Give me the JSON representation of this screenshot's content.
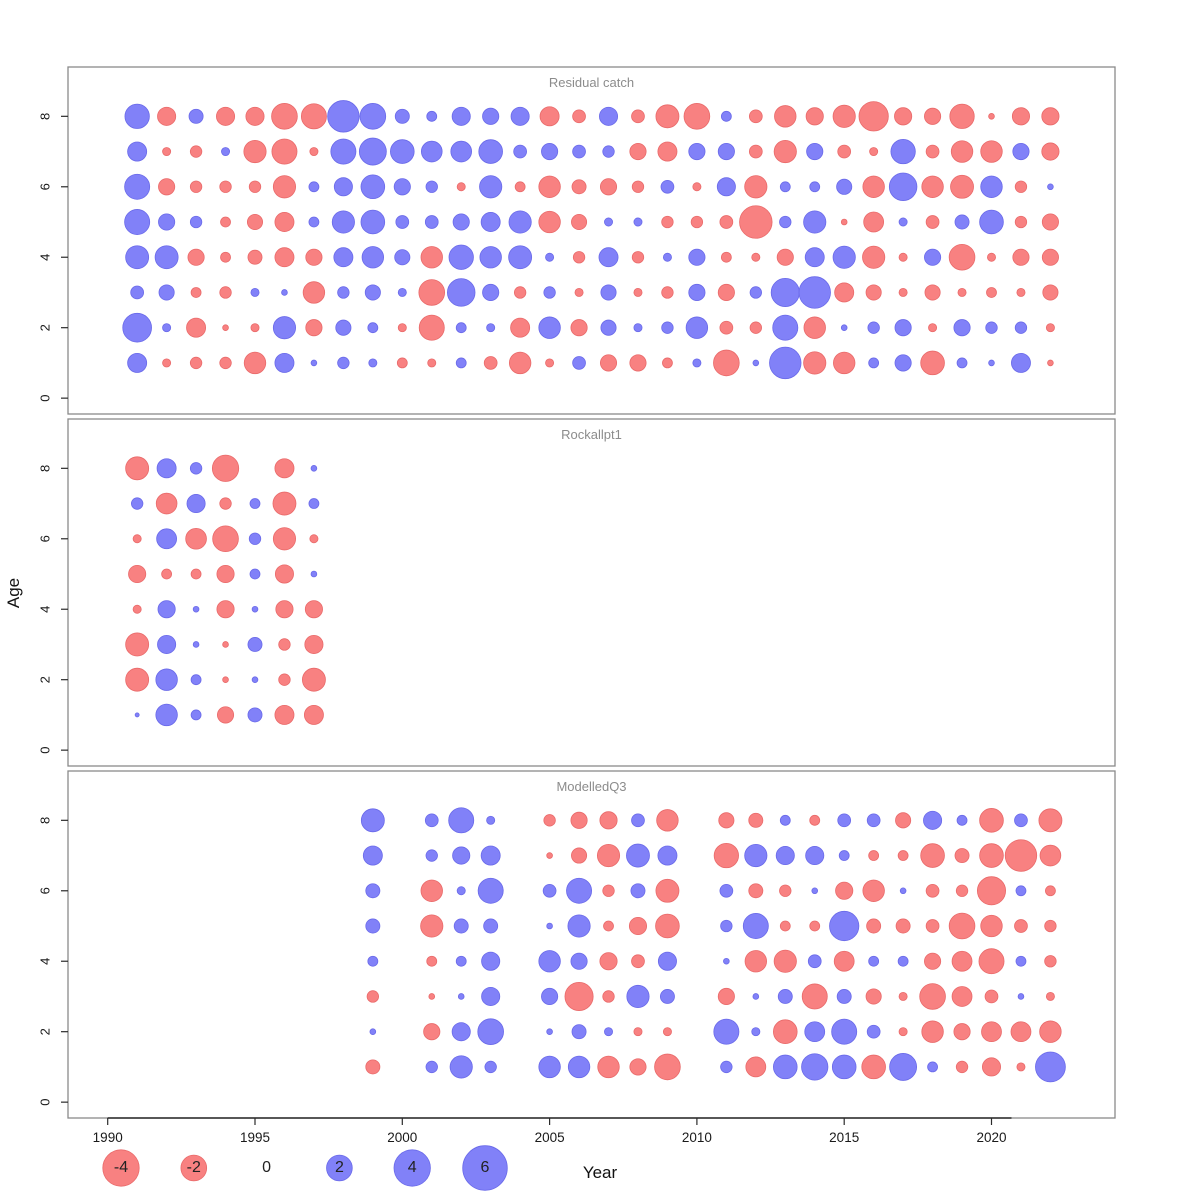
{
  "chart_data": {
    "type": "scatter",
    "subtype": "bubble-residual-matrix",
    "xlabel": "Year",
    "ylabel": "Age",
    "x_ticks": [
      1990,
      1995,
      2000,
      2005,
      2010,
      2015,
      2020
    ],
    "y_ticks": [
      0,
      2,
      4,
      6,
      8
    ],
    "x_range": [
      1988.6,
      2024.3
    ],
    "y_range": [
      -0.45,
      9.4
    ],
    "grid": false,
    "legend": {
      "position": "bottom",
      "values": [
        -4,
        -2,
        0,
        2,
        4,
        6
      ],
      "labels": [
        "-4",
        "-2",
        "0",
        "2",
        "4",
        "6"
      ],
      "note": "bubble area encodes |value|; red = negative, blue = positive"
    },
    "colors": {
      "negative_fill": "#F88181",
      "positive_fill": "#8181F8",
      "negative_stroke": "#E96A6A",
      "positive_stroke": "#6A6AE9",
      "panel_border": "#8a8a8a",
      "title_text": "#8c8c8c",
      "axis_text": "#1a1a1a",
      "axis_line": "#2b2b2b"
    },
    "panels": [
      {
        "title": "Residual catch",
        "years": [
          1991,
          1992,
          1993,
          1994,
          1995,
          1996,
          1997,
          1998,
          1999,
          2000,
          2001,
          2002,
          2003,
          2004,
          2005,
          2006,
          2007,
          2008,
          2009,
          2010,
          2011,
          2012,
          2013,
          2014,
          2015,
          2016,
          2017,
          2018,
          2019,
          2020,
          2021,
          2022
        ],
        "ages": [
          8,
          7,
          6,
          5,
          4,
          3,
          2,
          1
        ],
        "rows": [
          [
            1.8,
            -1,
            0.6,
            -1,
            -1,
            -2,
            -1.9,
            3,
            2,
            0.6,
            0.3,
            1,
            0.8,
            1,
            -1.1,
            -0.5,
            1,
            -0.5,
            -1.6,
            -2,
            0.3,
            -0.5,
            -1.4,
            -0.9,
            -1.5,
            -2.6,
            -0.9,
            -0.8,
            -1.8,
            -0.1,
            -0.9,
            -0.9
          ],
          [
            1.1,
            -0.2,
            -0.4,
            0.2,
            -1.5,
            -1.9,
            -0.2,
            1.9,
            2.2,
            1.7,
            1.3,
            1.3,
            1.7,
            0.5,
            0.8,
            0.5,
            0.4,
            -0.8,
            -1.1,
            0.8,
            0.8,
            -0.5,
            -1.5,
            0.8,
            -0.5,
            -0.2,
            1.8,
            -0.5,
            -1.4,
            -1.4,
            0.8,
            -0.9
          ],
          [
            1.9,
            -0.8,
            -0.4,
            -0.4,
            -0.4,
            -1.5,
            0.3,
            1,
            1.7,
            0.8,
            0.4,
            -0.2,
            1.5,
            -0.3,
            -1.4,
            -0.6,
            -0.8,
            -0.4,
            0.5,
            -0.2,
            1,
            -1.5,
            0.3,
            0.3,
            0.7,
            -1.4,
            2.3,
            -1.4,
            -1.6,
            1.4,
            -0.4,
            0.1
          ],
          [
            1.9,
            0.8,
            0.4,
            -0.3,
            -0.7,
            -1.1,
            0.3,
            1.5,
            1.7,
            0.5,
            0.5,
            0.8,
            1.1,
            1.5,
            -1.4,
            -0.7,
            0.2,
            0.2,
            -0.4,
            -0.4,
            -0.5,
            -3.2,
            0.4,
            1.5,
            -0.1,
            -1.2,
            0.2,
            -0.5,
            0.6,
            1.7,
            -0.4,
            -0.8
          ],
          [
            1.6,
            1.6,
            -0.8,
            -0.3,
            -0.6,
            -1.1,
            -0.8,
            1.1,
            1.4,
            0.7,
            -1.4,
            1.8,
            1.4,
            1.6,
            0.2,
            -0.4,
            1.1,
            -0.4,
            0.2,
            0.8,
            -0.3,
            -0.2,
            -0.8,
            1.1,
            1.5,
            -1.5,
            -0.2,
            0.8,
            -2,
            -0.2,
            -0.8,
            -0.8
          ],
          [
            0.5,
            0.7,
            -0.3,
            -0.4,
            0.2,
            0.1,
            -1.4,
            0.4,
            0.7,
            0.2,
            -2,
            2.3,
            0.8,
            -0.4,
            0.4,
            -0.2,
            0.7,
            -0.2,
            -0.4,
            0.8,
            -0.8,
            0.4,
            2.4,
            3,
            -1.1,
            -0.7,
            -0.2,
            -0.7,
            -0.2,
            -0.3,
            -0.2,
            -0.7
          ],
          [
            2.5,
            0.2,
            -1.1,
            -0.1,
            -0.2,
            1.5,
            -0.8,
            0.7,
            0.3,
            -0.2,
            -1.9,
            0.3,
            0.2,
            -1.1,
            1.4,
            -0.8,
            0.7,
            0.2,
            0.4,
            1.4,
            -0.5,
            -0.4,
            1.9,
            -1.4,
            0.1,
            0.4,
            0.8,
            -0.2,
            0.8,
            0.4,
            0.4,
            -0.2
          ],
          [
            1.1,
            -0.2,
            -0.4,
            -0.4,
            -1.4,
            1.1,
            0.1,
            0.4,
            0.2,
            -0.3,
            -0.2,
            0.3,
            -0.5,
            -1.4,
            -0.2,
            0.5,
            -0.8,
            -0.8,
            -0.3,
            0.2,
            -2,
            0.1,
            3,
            -1.5,
            -1.4,
            0.3,
            0.8,
            -1.7,
            0.3,
            0.1,
            1.1,
            -0.1
          ]
        ]
      },
      {
        "title": "Rockallpt1",
        "years": [
          1991,
          1992,
          1993,
          1994,
          1995,
          1996,
          1997
        ],
        "ages": [
          8,
          7,
          6,
          5,
          4,
          3,
          2,
          1
        ],
        "rows": [
          [
            -1.6,
            1.1,
            0.4,
            -2.1,
            null,
            -1.1,
            0.1
          ],
          [
            0.4,
            -1.3,
            1,
            -0.4,
            0.3,
            -1.6,
            0.3
          ],
          [
            -0.2,
            1.2,
            -1.3,
            -2,
            0.4,
            -1.5,
            -0.2
          ],
          [
            -0.9,
            -0.3,
            -0.3,
            -0.9,
            0.3,
            -1,
            0.1
          ],
          [
            -0.2,
            0.9,
            0.1,
            -0.9,
            0.1,
            -0.9,
            -0.9
          ],
          [
            -1.6,
            1,
            0.1,
            -0.1,
            0.6,
            -0.4,
            -1
          ],
          [
            -1.6,
            1.4,
            0.3,
            -0.1,
            0.1,
            -0.4,
            -1.6
          ],
          [
            0.05,
            1.4,
            0.3,
            -0.8,
            0.6,
            -1.1,
            -1.1
          ]
        ]
      },
      {
        "title": "ModelledQ3",
        "years": [
          1999,
          2000,
          2001,
          2002,
          2003,
          2004,
          2005,
          2006,
          2007,
          2008,
          2009,
          2010,
          2011,
          2012,
          2013,
          2014,
          2015,
          2016,
          2017,
          2018,
          2019,
          2020,
          2021,
          2022
        ],
        "ages": [
          8,
          7,
          6,
          5,
          4,
          3,
          2,
          1
        ],
        "rows": [
          [
            1.6,
            null,
            0.5,
            1.9,
            0.2,
            null,
            -0.4,
            -0.8,
            -0.9,
            0.5,
            -1.4,
            null,
            -0.7,
            -0.6,
            0.3,
            -0.3,
            0.5,
            0.5,
            -0.7,
            1,
            0.3,
            -1.7,
            0.5,
            -1.6
          ],
          [
            1.1,
            null,
            0.4,
            0.9,
            1.1,
            null,
            -0.1,
            -0.7,
            -1.5,
            1.6,
            1.1,
            null,
            -1.8,
            1.5,
            1,
            1,
            0.3,
            -0.3,
            -0.3,
            -1.7,
            -0.6,
            -1.7,
            -3,
            -1.3
          ],
          [
            0.6,
            null,
            -1.4,
            0.2,
            1.9,
            null,
            0.5,
            1.9,
            -0.4,
            0.6,
            -1.6,
            null,
            0.5,
            -0.6,
            -0.4,
            0.1,
            -0.9,
            -1.4,
            0.1,
            -0.5,
            -0.4,
            -2.4,
            0.3,
            -0.3
          ],
          [
            0.6,
            null,
            -1.5,
            0.6,
            0.6,
            null,
            0.1,
            1.5,
            -0.3,
            -0.9,
            -1.7,
            null,
            0.4,
            1.9,
            -0.3,
            -0.3,
            2.6,
            -0.6,
            -0.6,
            -0.5,
            -2,
            -1.4,
            -0.5,
            -0.4
          ],
          [
            0.3,
            null,
            -0.3,
            0.3,
            1,
            null,
            1.4,
            0.8,
            -0.9,
            -0.5,
            1,
            null,
            0.1,
            -1.4,
            -1.5,
            0.5,
            -1.2,
            0.3,
            0.3,
            -0.8,
            -1.2,
            -1.9,
            0.3,
            -0.4
          ],
          [
            -0.4,
            null,
            -0.1,
            0.1,
            1,
            null,
            0.8,
            -2.4,
            -0.4,
            1.5,
            0.6,
            null,
            -0.8,
            0.1,
            0.6,
            -1.9,
            0.6,
            -0.7,
            -0.2,
            -2,
            -1.2,
            -0.5,
            0.1,
            -0.2
          ],
          [
            0.1,
            null,
            -0.8,
            1,
            2,
            null,
            0.1,
            0.6,
            0.2,
            -0.2,
            -0.2,
            null,
            1.9,
            0.2,
            -1.7,
            1.2,
            1.9,
            0.5,
            -0.2,
            -1.4,
            -0.8,
            -1.2,
            -1.2,
            -1.4
          ],
          [
            -0.6,
            null,
            0.4,
            1.5,
            0.4,
            null,
            1.4,
            1.4,
            -1.4,
            -0.8,
            -2,
            null,
            0.4,
            -1.2,
            1.7,
            2.1,
            1.7,
            -1.7,
            2.2,
            0.3,
            -0.4,
            -1,
            -0.2,
            2.7
          ]
        ]
      }
    ]
  }
}
